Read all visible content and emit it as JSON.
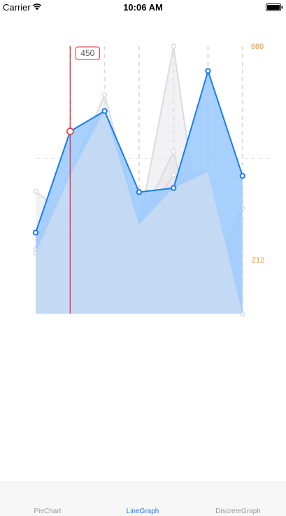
{
  "status_bar": {
    "carrier": "Carrier",
    "time": "10:06 AM"
  },
  "tabs": [
    {
      "label": "PieChart",
      "active": false
    },
    {
      "label": "LineGraph",
      "active": true
    },
    {
      "label": "DiscreteGraph",
      "active": false
    }
  ],
  "chart_data": {
    "type": "area",
    "x": [
      0,
      1,
      2,
      3,
      4,
      5,
      6
    ],
    "ylim": [
      0,
      660
    ],
    "primary_series": {
      "values": [
        200,
        450,
        500,
        300,
        310,
        599,
        340
      ],
      "color": "#1a7cf0",
      "fill": "#99c8fd"
    },
    "background_series": [
      {
        "values": [
          150,
          342,
          540,
          220,
          342,
          350,
          0
        ]
      },
      {
        "values": [
          302,
          235,
          450,
          224,
          400,
          62,
          260
        ]
      },
      {
        "values": [
          160,
          190,
          454,
          217,
          660,
          62,
          0
        ]
      }
    ],
    "average_line": 0.58,
    "selected_index": 1,
    "selected_label": "450",
    "axis_labels": {
      "max": "660",
      "min": "212"
    },
    "colors": {
      "accent": "#1a7cf0",
      "marker": "#e8262a",
      "label": "#e8932a",
      "grid": "#dedede"
    }
  }
}
